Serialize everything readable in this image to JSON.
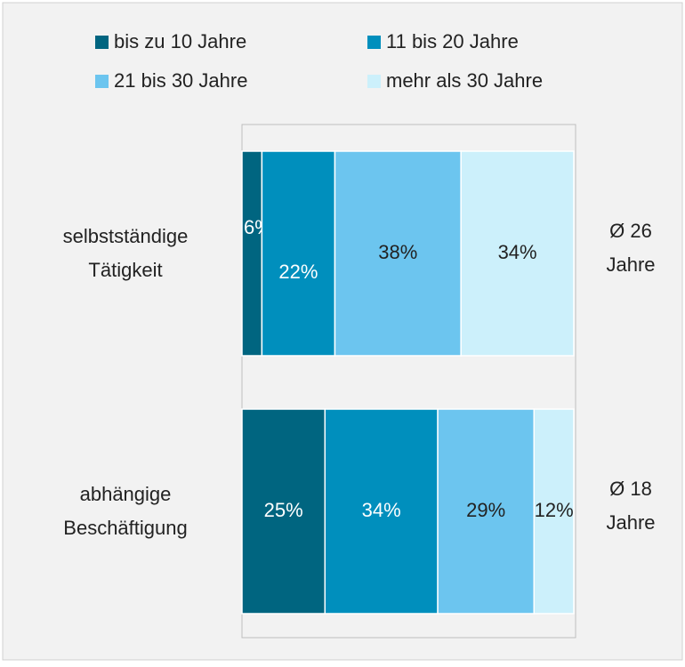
{
  "chart_data": {
    "type": "stacked-bar-horizontal",
    "categories": [
      [
        "selbstständige",
        "Tätigkeit"
      ],
      [
        "abhängige",
        "Beschäftigung"
      ]
    ],
    "series": [
      {
        "name": "bis zu 10 Jahre",
        "color": "#006580",
        "values": [
          6,
          25
        ],
        "value_labels": [
          "6%",
          "25%"
        ]
      },
      {
        "name": "11 bis 20 Jahre",
        "color": "#008fbd",
        "values": [
          22,
          34
        ],
        "value_labels": [
          "22%",
          "34%"
        ]
      },
      {
        "name": "21 bis 30 Jahre",
        "color": "#6cc5ef",
        "values": [
          38,
          29
        ],
        "value_labels": [
          "38%",
          "29%"
        ]
      },
      {
        "name": "mehr als 30 Jahre",
        "color": "#ccf0fb",
        "values": [
          34,
          12
        ],
        "value_labels": [
          "34%",
          "12%"
        ]
      }
    ],
    "annotations": [
      [
        "Ø 26",
        "Jahre"
      ],
      [
        "Ø 18",
        "Jahre"
      ]
    ]
  }
}
